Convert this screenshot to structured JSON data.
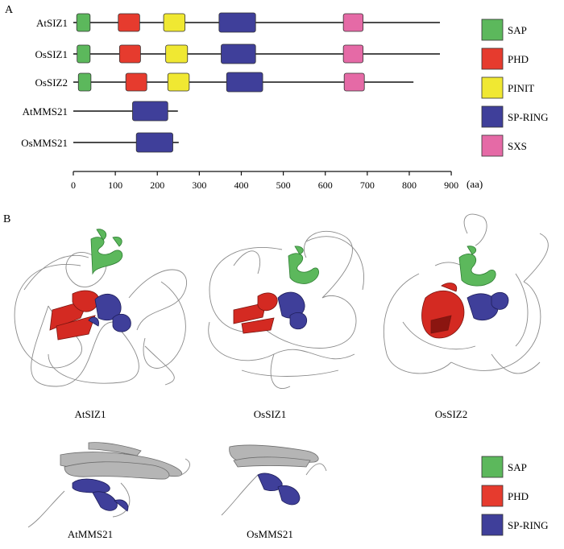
{
  "panel_a": {
    "label": "A",
    "domain_colors": {
      "SAP": "#5cb85c",
      "PHD": "#e63b2e",
      "PINIT": "#f0e832",
      "SP-RING": "#3f3f9a",
      "SXS": "#e56aa6"
    },
    "proteins": [
      {
        "name": "AtSIZ1",
        "length": 873,
        "domains": [
          {
            "type": "SAP",
            "start": 8,
            "end": 40
          },
          {
            "type": "PHD",
            "start": 107,
            "end": 158
          },
          {
            "type": "PINIT",
            "start": 215,
            "end": 266
          },
          {
            "type": "SP-RING",
            "start": 347,
            "end": 434
          },
          {
            "type": "SXS",
            "start": 643,
            "end": 690
          }
        ]
      },
      {
        "name": "OsSIZ1",
        "length": 873,
        "domains": [
          {
            "type": "SAP",
            "start": 9,
            "end": 40
          },
          {
            "type": "PHD",
            "start": 110,
            "end": 160
          },
          {
            "type": "PINIT",
            "start": 220,
            "end": 272
          },
          {
            "type": "SP-RING",
            "start": 352,
            "end": 434
          },
          {
            "type": "SXS",
            "start": 643,
            "end": 690
          }
        ]
      },
      {
        "name": "OsSIZ2",
        "length": 810,
        "domains": [
          {
            "type": "SAP",
            "start": 12,
            "end": 42
          },
          {
            "type": "PHD",
            "start": 125,
            "end": 175
          },
          {
            "type": "PINIT",
            "start": 225,
            "end": 276
          },
          {
            "type": "SP-RING",
            "start": 365,
            "end": 451
          },
          {
            "type": "SXS",
            "start": 645,
            "end": 693
          }
        ]
      },
      {
        "name": "AtMMS21",
        "length": 249,
        "domains": [
          {
            "type": "SP-RING",
            "start": 141,
            "end": 225
          }
        ]
      },
      {
        "name": "OsMMS21",
        "length": 251,
        "domains": [
          {
            "type": "SP-RING",
            "start": 150,
            "end": 237
          }
        ]
      }
    ],
    "axis": {
      "ticks": [
        0,
        100,
        200,
        300,
        400,
        500,
        600,
        700,
        800,
        900
      ],
      "max": 900,
      "unit": "(aa)"
    },
    "legend": [
      "SAP",
      "PHD",
      "PINIT",
      "SP-RING",
      "SXS"
    ]
  },
  "panel_b": {
    "label": "B",
    "structures": [
      {
        "name": "AtSIZ1"
      },
      {
        "name": "OsSIZ1"
      },
      {
        "name": "OsSIZ2"
      },
      {
        "name": "AtMMS21"
      },
      {
        "name": "OsMMS21"
      }
    ],
    "legend": [
      "SAP",
      "PHD",
      "SP-RING"
    ]
  }
}
